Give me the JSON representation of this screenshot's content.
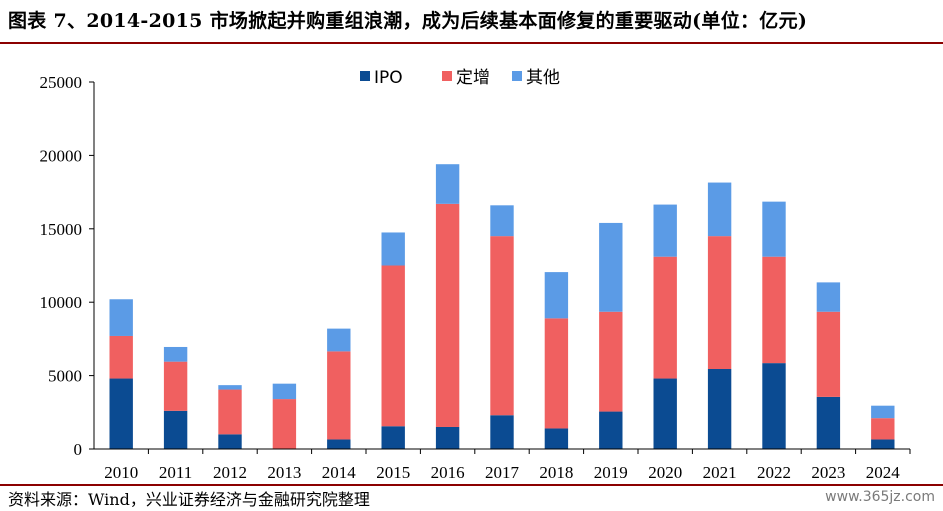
{
  "header": {
    "title": "图表 7、2014-2015 市场掀起并购重组浪潮，成为后续基本面修复的重要驱动(单位：亿元)"
  },
  "footer": {
    "source": "资料来源：Wind，兴业证券经济与金融研究院整理",
    "watermark": "www.365jz.com"
  },
  "chart_data": {
    "type": "bar",
    "stacked": true,
    "categories": [
      "2010",
      "2011",
      "2012",
      "2013",
      "2014",
      "2015",
      "2016",
      "2017",
      "2018",
      "2019",
      "2020",
      "2021",
      "2022",
      "2023",
      "2024"
    ],
    "series": [
      {
        "name": "IPO",
        "color": "#0b4b92",
        "values": [
          4800,
          2600,
          1000,
          0,
          650,
          1550,
          1500,
          2300,
          1400,
          2550,
          4800,
          5450,
          5850,
          3550,
          650
        ]
      },
      {
        "name": "定增",
        "color": "#f06060",
        "values": [
          2900,
          3350,
          3050,
          3400,
          6000,
          10950,
          15200,
          12200,
          7500,
          6800,
          8300,
          9050,
          7250,
          5800,
          1450
        ]
      },
      {
        "name": "其他",
        "color": "#5b9be6",
        "values": [
          2500,
          1000,
          300,
          1050,
          1550,
          2250,
          2700,
          2100,
          3150,
          6050,
          3550,
          3650,
          3750,
          2000,
          850
        ]
      }
    ],
    "ylim": [
      0,
      25000
    ],
    "yticks": [
      0,
      5000,
      10000,
      15000,
      20000,
      25000
    ],
    "grid": false,
    "legend_position": "top-center"
  }
}
